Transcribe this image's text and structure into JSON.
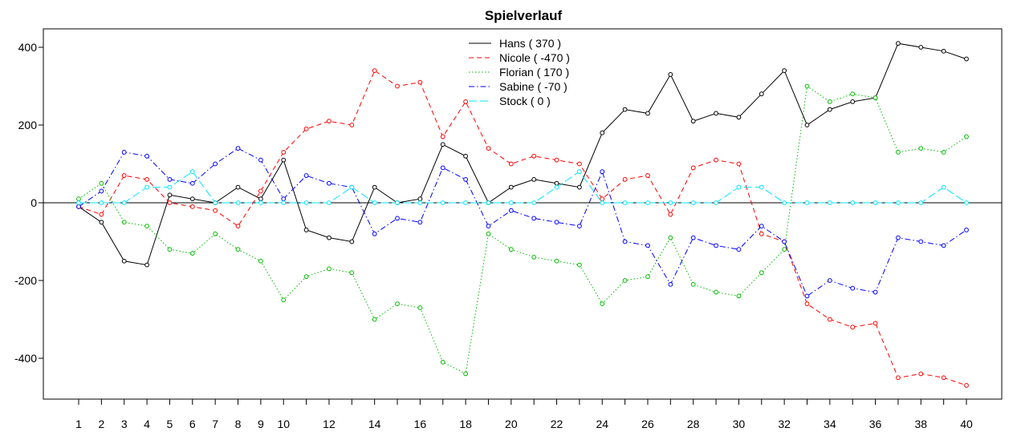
{
  "chart_data": {
    "type": "line",
    "title": "Spielverlauf",
    "xlabel": "",
    "ylabel": "",
    "x": [
      1,
      2,
      3,
      4,
      5,
      6,
      7,
      8,
      9,
      10,
      11,
      12,
      13,
      14,
      15,
      16,
      17,
      18,
      19,
      20,
      21,
      22,
      23,
      24,
      25,
      26,
      27,
      28,
      29,
      30,
      31,
      32,
      33,
      34,
      35,
      36,
      37,
      38,
      39,
      40
    ],
    "xlim": [
      1,
      40
    ],
    "ylim": [
      -500,
      440
    ],
    "x_tick_labels": [
      "1",
      "2",
      "3",
      "4",
      "5",
      "6",
      "7",
      "8",
      "9",
      "10",
      "12",
      "14",
      "16",
      "18",
      "20",
      "22",
      "24",
      "26",
      "28",
      "30",
      "32",
      "34",
      "36",
      "38",
      "40"
    ],
    "y_ticks": [
      -400,
      -200,
      0,
      200,
      400
    ],
    "y_tick_labels": [
      "-400",
      "-200",
      "0",
      "200",
      "400"
    ],
    "grid": false,
    "legend_position": "top-center",
    "zero_line": true,
    "series": [
      {
        "name": "Hans",
        "legend_label": "Hans  ( 370 )",
        "color": "#000000",
        "line_style": "solid",
        "values": [
          -10,
          -50,
          -150,
          -160,
          20,
          10,
          0,
          40,
          10,
          110,
          -70,
          -90,
          -100,
          40,
          0,
          10,
          150,
          120,
          0,
          40,
          60,
          50,
          40,
          180,
          240,
          230,
          330,
          210,
          230,
          220,
          280,
          340,
          200,
          240,
          260,
          270,
          410,
          400,
          390,
          370
        ]
      },
      {
        "name": "Nicole",
        "legend_label": "Nicole  ( -470 )",
        "color": "#ff0000",
        "line_style": "dashed",
        "values": [
          -10,
          -30,
          70,
          60,
          0,
          -10,
          -20,
          -60,
          30,
          130,
          190,
          210,
          200,
          340,
          300,
          310,
          170,
          260,
          140,
          100,
          120,
          110,
          100,
          10,
          60,
          70,
          -30,
          90,
          110,
          100,
          -80,
          -100,
          -260,
          -300,
          -320,
          -310,
          -450,
          -440,
          -450,
          -470
        ]
      },
      {
        "name": "Florian",
        "legend_label": "Florian  ( 170 )",
        "color": "#00bb00",
        "line_style": "dotted",
        "values": [
          10,
          50,
          -50,
          -60,
          -120,
          -130,
          -80,
          -120,
          -150,
          -250,
          -190,
          -170,
          -180,
          -300,
          -260,
          -270,
          -410,
          -440,
          -80,
          -120,
          -140,
          -150,
          -160,
          -260,
          -200,
          -190,
          -90,
          -210,
          -230,
          -240,
          -180,
          -120,
          300,
          260,
          280,
          270,
          130,
          140,
          130,
          170
        ]
      },
      {
        "name": "Sabine",
        "legend_label": "Sabine  ( -70 )",
        "color": "#0000ff",
        "line_style": "dashdot",
        "values": [
          -10,
          30,
          130,
          120,
          60,
          50,
          100,
          140,
          110,
          10,
          70,
          50,
          40,
          -80,
          -40,
          -50,
          90,
          60,
          -60,
          -20,
          -40,
          -50,
          -60,
          80,
          -100,
          -110,
          -210,
          -90,
          -110,
          -120,
          -60,
          -100,
          -240,
          -200,
          -220,
          -230,
          -90,
          -100,
          -110,
          -70
        ]
      },
      {
        "name": "Stock",
        "legend_label": "Stock ( 0 )",
        "color": "#00e5ff",
        "line_style": "longdash",
        "values": [
          0,
          0,
          0,
          40,
          40,
          80,
          0,
          0,
          0,
          0,
          0,
          0,
          40,
          0,
          0,
          0,
          0,
          0,
          0,
          0,
          0,
          40,
          80,
          0,
          0,
          0,
          0,
          0,
          0,
          40,
          40,
          0,
          0,
          0,
          0,
          0,
          0,
          0,
          40,
          0
        ]
      }
    ]
  }
}
